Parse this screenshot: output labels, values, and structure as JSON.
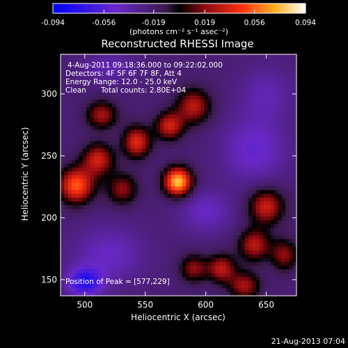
{
  "chart_data": {
    "type": "heatmap",
    "title": "Reconstructed RHESSI Image",
    "xlabel": "Heliocentric X (arcsec)",
    "ylabel": "Heliocentric Y (arcsec)",
    "xlim": [
      480,
      675
    ],
    "ylim": [
      137,
      332
    ],
    "x_ticks": [
      500,
      550,
      600,
      650
    ],
    "y_ticks": [
      150,
      200,
      250,
      300
    ],
    "colorbar": {
      "min": -0.094,
      "max": 0.094,
      "ticks": [
        "-0.094",
        "-0.056",
        "-0.019",
        "0.019",
        "0.056",
        "0.094"
      ],
      "tick_values": [
        -0.094,
        -0.056,
        -0.019,
        0.019,
        0.056,
        0.094
      ],
      "units": "(photons cm⁻² s⁻¹ asec⁻²)",
      "colormap": "blue-purple-red-yellow-white"
    },
    "annotations": [
      "4-Aug-2011 09:18:36.000 to 09:22:02.000",
      "Detectors: 4F 5F 6F 7F 8F, Att 4",
      "Energy Range: 12.0 - 25.0 keV",
      "Clean",
      "Total counts: 2.80E+04"
    ],
    "peak_label": "Position of Peak = [577,229]",
    "peak": {
      "x": 577,
      "y": 229,
      "value": 0.094
    },
    "sources": [
      {
        "x": 577,
        "y": 229,
        "value": 0.094,
        "sx": 8,
        "sy": 8
      },
      {
        "x": 493,
        "y": 226,
        "value": 0.07,
        "sx": 10,
        "sy": 10
      },
      {
        "x": 511,
        "y": 247,
        "value": 0.05,
        "sx": 9,
        "sy": 9
      },
      {
        "x": 543,
        "y": 261,
        "value": 0.055,
        "sx": 8,
        "sy": 9
      },
      {
        "x": 570,
        "y": 274,
        "value": 0.05,
        "sx": 8,
        "sy": 8
      },
      {
        "x": 590,
        "y": 290,
        "value": 0.045,
        "sx": 10,
        "sy": 10
      },
      {
        "x": 514,
        "y": 283,
        "value": 0.04,
        "sx": 9,
        "sy": 8
      },
      {
        "x": 531,
        "y": 223,
        "value": 0.035,
        "sx": 9,
        "sy": 9
      },
      {
        "x": 650,
        "y": 209,
        "value": 0.05,
        "sx": 10,
        "sy": 10
      },
      {
        "x": 640,
        "y": 178,
        "value": 0.045,
        "sx": 9,
        "sy": 9
      },
      {
        "x": 613,
        "y": 159,
        "value": 0.045,
        "sx": 8,
        "sy": 8
      },
      {
        "x": 632,
        "y": 145,
        "value": 0.04,
        "sx": 9,
        "sy": 8
      },
      {
        "x": 590,
        "y": 159,
        "value": 0.035,
        "sx": 8,
        "sy": 8
      },
      {
        "x": 665,
        "y": 170,
        "value": 0.035,
        "sx": 8,
        "sy": 9
      },
      {
        "x": 600,
        "y": 205,
        "value": -0.03,
        "sx": 15,
        "sy": 12
      },
      {
        "x": 640,
        "y": 255,
        "value": -0.035,
        "sx": 18,
        "sy": 18
      },
      {
        "x": 520,
        "y": 170,
        "value": -0.03,
        "sx": 20,
        "sy": 16
      },
      {
        "x": 500,
        "y": 148,
        "value": -0.06,
        "sx": 10,
        "sy": 8
      },
      {
        "x": 520,
        "y": 322,
        "value": -0.025,
        "sx": 15,
        "sy": 8
      },
      {
        "x": 650,
        "y": 300,
        "value": -0.025,
        "sx": 15,
        "sy": 15
      }
    ]
  },
  "footer": {
    "date": "21-Aug-2013 07:04"
  }
}
